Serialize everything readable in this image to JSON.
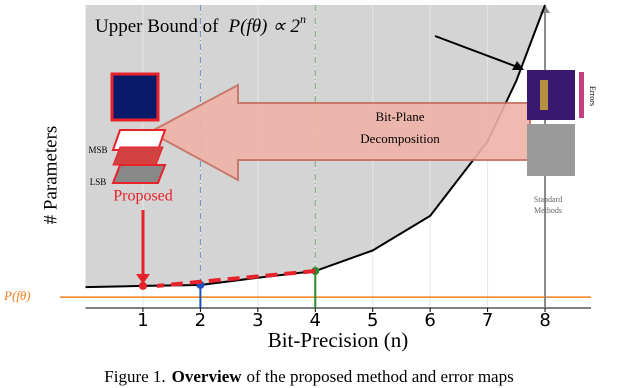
{
  "chart_data": {
    "type": "line",
    "x": [
      0,
      1,
      2,
      3,
      4,
      5,
      6,
      7,
      7.5,
      8
    ],
    "series": [
      {
        "color": "#000000",
        "values": [
          6.9,
          7.3,
          7.6,
          10,
          12.2,
          19,
          30.4,
          55,
          75,
          100
        ]
      }
    ],
    "xlim": [
      0,
      8.8
    ],
    "ylim": [
      0,
      100
    ],
    "xticks": [
      1,
      2,
      3,
      4,
      5,
      6,
      7,
      8
    ],
    "grid": true,
    "x_label": "Bit-Precision (n)",
    "y_label": "# Parameters",
    "points": [
      {
        "x": 1,
        "y": 7.3,
        "color": "#e8222a"
      },
      {
        "x": 2,
        "y": 7.6,
        "color": "#1f4fbf"
      },
      {
        "x": 4,
        "y": 12.2,
        "color": "#2a8a2a"
      }
    ],
    "reference_line": {
      "value": 3.6,
      "label": "P(fθ)",
      "color": "#f08020"
    },
    "annotations": {
      "upper_bound": "Upper Bound of",
      "formula": "P(fθ) ∝ 2",
      "exponent": "n",
      "arrow_line1": "Bit-Plane",
      "arrow_line2": "Decomposition",
      "msb": "MSB",
      "lsb": "LSB",
      "proposed": "Proposed",
      "errors": "Errors",
      "standard1": "Standard",
      "standard2": "Methods"
    }
  },
  "caption": {
    "label": "Figure 1.",
    "bold": "Overview",
    "text": "of the proposed method and error maps"
  }
}
